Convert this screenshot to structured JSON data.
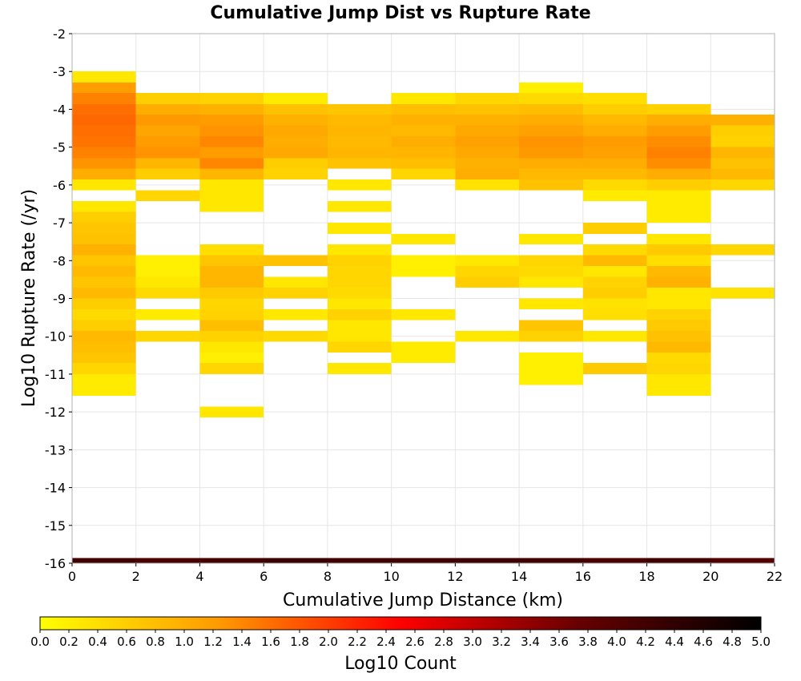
{
  "chart_data": {
    "type": "heatmap",
    "title": "Cumulative Jump Dist vs Rupture Rate",
    "xlabel": "Cumulative Jump Distance (km)",
    "ylabel": "Log10 Rupture Rate (/yr)",
    "xlim": [
      0,
      22
    ],
    "ylim": [
      -16,
      -2
    ],
    "x_bin_width": 2,
    "y_bin_height": 0.2857,
    "xticks": [
      0,
      2,
      4,
      6,
      8,
      10,
      12,
      14,
      16,
      18,
      20,
      22
    ],
    "yticks": [
      -2,
      -3,
      -4,
      -5,
      -6,
      -7,
      -8,
      -9,
      -10,
      -11,
      -12,
      -13,
      -14,
      -15,
      -16
    ],
    "grid": true,
    "colorbar": {
      "label": "Log10 Count",
      "range": [
        0,
        5
      ],
      "ticks": [
        "0.0",
        "0.2",
        "0.4",
        "0.6",
        "0.8",
        "1.0",
        "1.2",
        "1.4",
        "1.6",
        "1.8",
        "2.0",
        "2.2",
        "2.4",
        "2.6",
        "2.8",
        "3.0",
        "3.2",
        "3.4",
        "3.6",
        "3.8",
        "4.0",
        "4.2",
        "4.4",
        "4.6",
        "4.8",
        "5.0"
      ],
      "colors": [
        "#ffff00",
        "#ff9900",
        "#ff0000",
        "#660000",
        "#000000"
      ]
    },
    "columns": [
      {
        "x": [
          0,
          2
        ],
        "cells": [
          [
            -3.29,
            -3.0,
            0.3
          ],
          [
            -3.57,
            -3.29,
            1.2
          ],
          [
            -3.86,
            -3.57,
            1.45
          ],
          [
            -4.14,
            -3.86,
            1.6
          ],
          [
            -4.43,
            -4.14,
            1.65
          ],
          [
            -4.71,
            -4.43,
            1.6
          ],
          [
            -5.0,
            -4.71,
            1.55
          ],
          [
            -5.29,
            -5.0,
            1.45
          ],
          [
            -5.57,
            -5.29,
            1.3
          ],
          [
            -5.86,
            -5.57,
            1.0
          ],
          [
            -6.14,
            -5.86,
            0.3
          ],
          [
            -6.71,
            -6.43,
            0.3
          ],
          [
            -7.0,
            -6.71,
            0.6
          ],
          [
            -7.29,
            -7.0,
            0.7
          ],
          [
            -7.57,
            -7.29,
            0.75
          ],
          [
            -7.86,
            -7.57,
            0.95
          ],
          [
            -8.14,
            -7.86,
            0.7
          ],
          [
            -8.43,
            -8.14,
            0.85
          ],
          [
            -8.71,
            -8.43,
            0.7
          ],
          [
            -9.0,
            -8.71,
            0.85
          ],
          [
            -9.29,
            -9.0,
            0.6
          ],
          [
            -9.57,
            -9.29,
            0.45
          ],
          [
            -9.86,
            -9.57,
            0.6
          ],
          [
            -10.14,
            -9.86,
            0.85
          ],
          [
            -10.43,
            -10.14,
            0.8
          ],
          [
            -10.71,
            -10.43,
            0.7
          ],
          [
            -11.0,
            -10.71,
            0.5
          ],
          [
            -11.57,
            -11.0,
            0.25
          ],
          [
            -16.0,
            -15.86,
            4.2
          ]
        ]
      },
      {
        "x": [
          2,
          4
        ],
        "cells": [
          [
            -3.86,
            -3.57,
            0.6
          ],
          [
            -4.14,
            -3.86,
            1.0
          ],
          [
            -4.43,
            -4.14,
            1.25
          ],
          [
            -4.71,
            -4.43,
            1.1
          ],
          [
            -5.0,
            -4.71,
            1.2
          ],
          [
            -5.29,
            -5.0,
            1.3
          ],
          [
            -5.57,
            -5.29,
            0.9
          ],
          [
            -5.86,
            -5.57,
            0.6
          ],
          [
            -6.43,
            -6.14,
            0.5
          ],
          [
            -8.43,
            -7.86,
            0.2
          ],
          [
            -8.71,
            -8.43,
            0.3
          ],
          [
            -9.0,
            -8.71,
            0.45
          ],
          [
            -9.57,
            -9.29,
            0.25
          ],
          [
            -10.14,
            -9.86,
            0.5
          ],
          [
            -16.0,
            -15.86,
            4.1
          ]
        ]
      },
      {
        "x": [
          4,
          6
        ],
        "cells": [
          [
            -3.86,
            -3.57,
            0.55
          ],
          [
            -4.14,
            -3.86,
            0.95
          ],
          [
            -4.43,
            -4.14,
            1.2
          ],
          [
            -4.71,
            -4.43,
            1.3
          ],
          [
            -5.0,
            -4.71,
            1.4
          ],
          [
            -5.29,
            -5.0,
            1.2
          ],
          [
            -5.57,
            -5.29,
            1.4
          ],
          [
            -5.86,
            -5.57,
            0.9
          ],
          [
            -6.14,
            -5.86,
            0.3
          ],
          [
            -6.71,
            -6.14,
            0.3
          ],
          [
            -7.86,
            -7.57,
            0.4
          ],
          [
            -8.14,
            -7.86,
            0.7
          ],
          [
            -8.43,
            -8.14,
            0.9
          ],
          [
            -8.71,
            -8.43,
            0.9
          ],
          [
            -9.0,
            -8.71,
            0.65
          ],
          [
            -9.29,
            -9.0,
            0.5
          ],
          [
            -9.57,
            -9.29,
            0.55
          ],
          [
            -9.86,
            -9.57,
            0.8
          ],
          [
            -10.14,
            -9.86,
            0.55
          ],
          [
            -10.43,
            -10.14,
            0.3
          ],
          [
            -10.71,
            -10.43,
            0.2
          ],
          [
            -11.0,
            -10.71,
            0.5
          ],
          [
            -12.14,
            -11.86,
            0.3
          ],
          [
            -16.0,
            -15.86,
            4.15
          ]
        ]
      },
      {
        "x": [
          6,
          8
        ],
        "cells": [
          [
            -3.86,
            -3.57,
            0.25
          ],
          [
            -4.14,
            -3.86,
            0.75
          ],
          [
            -4.43,
            -4.14,
            0.95
          ],
          [
            -4.71,
            -4.43,
            1.05
          ],
          [
            -5.0,
            -4.71,
            1.0
          ],
          [
            -5.29,
            -5.0,
            1.05
          ],
          [
            -5.57,
            -5.29,
            0.6
          ],
          [
            -5.86,
            -5.57,
            0.55
          ],
          [
            -8.14,
            -7.86,
            0.75
          ],
          [
            -8.71,
            -8.43,
            0.3
          ],
          [
            -9.0,
            -8.71,
            0.55
          ],
          [
            -9.57,
            -9.29,
            0.3
          ],
          [
            -10.14,
            -9.86,
            0.45
          ],
          [
            -16.0,
            -15.86,
            4.3
          ]
        ]
      },
      {
        "x": [
          8,
          10
        ],
        "cells": [
          [
            -4.14,
            -3.86,
            0.7
          ],
          [
            -4.43,
            -4.14,
            0.85
          ],
          [
            -4.71,
            -4.43,
            0.9
          ],
          [
            -5.0,
            -4.71,
            0.85
          ],
          [
            -5.29,
            -5.0,
            0.9
          ],
          [
            -5.57,
            -5.29,
            0.75
          ],
          [
            -6.14,
            -5.86,
            0.3
          ],
          [
            -6.71,
            -6.43,
            0.3
          ],
          [
            -7.29,
            -7.0,
            0.3
          ],
          [
            -7.86,
            -7.57,
            0.3
          ],
          [
            -8.14,
            -7.86,
            0.55
          ],
          [
            -8.43,
            -8.14,
            0.5
          ],
          [
            -8.71,
            -8.43,
            0.5
          ],
          [
            -9.0,
            -8.71,
            0.45
          ],
          [
            -9.29,
            -9.0,
            0.3
          ],
          [
            -9.57,
            -9.29,
            0.55
          ],
          [
            -9.86,
            -9.57,
            0.3
          ],
          [
            -10.14,
            -9.86,
            0.3
          ],
          [
            -10.43,
            -10.14,
            0.5
          ],
          [
            -11.0,
            -10.71,
            0.3
          ],
          [
            -16.0,
            -15.86,
            4.2
          ]
        ]
      },
      {
        "x": [
          10,
          12
        ],
        "cells": [
          [
            -3.86,
            -3.57,
            0.3
          ],
          [
            -4.14,
            -3.86,
            0.8
          ],
          [
            -4.43,
            -4.14,
            0.95
          ],
          [
            -4.71,
            -4.43,
            0.85
          ],
          [
            -5.0,
            -4.71,
            1.0
          ],
          [
            -5.29,
            -5.0,
            0.9
          ],
          [
            -5.57,
            -5.29,
            0.8
          ],
          [
            -5.86,
            -5.57,
            0.5
          ],
          [
            -7.57,
            -7.29,
            0.3
          ],
          [
            -8.43,
            -7.86,
            0.2
          ],
          [
            -9.57,
            -9.29,
            0.3
          ],
          [
            -10.71,
            -10.14,
            0.25
          ],
          [
            -16.0,
            -15.86,
            4.2
          ]
        ]
      },
      {
        "x": [
          12,
          14
        ],
        "cells": [
          [
            -3.86,
            -3.57,
            0.5
          ],
          [
            -4.14,
            -3.86,
            0.75
          ],
          [
            -4.43,
            -4.14,
            0.95
          ],
          [
            -4.71,
            -4.43,
            1.05
          ],
          [
            -5.0,
            -4.71,
            1.15
          ],
          [
            -5.29,
            -5.0,
            1.05
          ],
          [
            -5.57,
            -5.29,
            0.95
          ],
          [
            -5.86,
            -5.57,
            1.0
          ],
          [
            -6.14,
            -5.86,
            0.35
          ],
          [
            -8.14,
            -7.86,
            0.3
          ],
          [
            -8.43,
            -8.14,
            0.5
          ],
          [
            -8.71,
            -8.43,
            0.6
          ],
          [
            -10.14,
            -9.86,
            0.3
          ],
          [
            -16.0,
            -15.86,
            4.25
          ]
        ]
      },
      {
        "x": [
          14,
          16
        ],
        "cells": [
          [
            -3.57,
            -3.29,
            0.2
          ],
          [
            -3.86,
            -3.57,
            0.45
          ],
          [
            -4.14,
            -3.86,
            0.8
          ],
          [
            -4.43,
            -4.14,
            1.0
          ],
          [
            -4.71,
            -4.43,
            1.15
          ],
          [
            -5.0,
            -4.71,
            1.3
          ],
          [
            -5.29,
            -5.0,
            1.25
          ],
          [
            -5.57,
            -5.29,
            1.0
          ],
          [
            -5.86,
            -5.57,
            0.85
          ],
          [
            -6.14,
            -5.86,
            0.75
          ],
          [
            -7.57,
            -7.29,
            0.3
          ],
          [
            -8.14,
            -7.86,
            0.5
          ],
          [
            -8.43,
            -8.14,
            0.45
          ],
          [
            -8.71,
            -8.43,
            0.3
          ],
          [
            -9.29,
            -9.0,
            0.3
          ],
          [
            -9.86,
            -9.57,
            0.7
          ],
          [
            -10.14,
            -9.86,
            0.55
          ],
          [
            -11.29,
            -10.43,
            0.2
          ],
          [
            -16.0,
            -15.86,
            4.2
          ]
        ]
      },
      {
        "x": [
          16,
          18
        ],
        "cells": [
          [
            -3.86,
            -3.57,
            0.4
          ],
          [
            -4.14,
            -3.86,
            0.6
          ],
          [
            -4.43,
            -4.14,
            0.85
          ],
          [
            -4.71,
            -4.43,
            1.0
          ],
          [
            -5.0,
            -4.71,
            1.2
          ],
          [
            -5.29,
            -5.0,
            1.15
          ],
          [
            -5.57,
            -5.29,
            1.0
          ],
          [
            -5.86,
            -5.57,
            0.85
          ],
          [
            -6.14,
            -5.86,
            0.45
          ],
          [
            -6.43,
            -6.14,
            0.25
          ],
          [
            -7.29,
            -7.0,
            0.6
          ],
          [
            -7.86,
            -7.57,
            0.45
          ],
          [
            -8.14,
            -7.86,
            0.85
          ],
          [
            -8.43,
            -8.14,
            0.3
          ],
          [
            -8.71,
            -8.43,
            0.55
          ],
          [
            -9.0,
            -8.71,
            0.6
          ],
          [
            -9.29,
            -9.0,
            0.35
          ],
          [
            -9.57,
            -9.29,
            0.4
          ],
          [
            -10.14,
            -9.86,
            0.3
          ],
          [
            -11.0,
            -10.71,
            0.65
          ],
          [
            -16.0,
            -15.86,
            4.1
          ]
        ]
      },
      {
        "x": [
          18,
          20
        ],
        "cells": [
          [
            -4.14,
            -3.86,
            0.55
          ],
          [
            -4.43,
            -4.14,
            1.0
          ],
          [
            -4.71,
            -4.43,
            1.2
          ],
          [
            -5.0,
            -4.71,
            1.35
          ],
          [
            -5.29,
            -5.0,
            1.45
          ],
          [
            -5.57,
            -5.29,
            1.35
          ],
          [
            -5.86,
            -5.57,
            1.0
          ],
          [
            -6.14,
            -5.86,
            0.6
          ],
          [
            -7.0,
            -6.14,
            0.25
          ],
          [
            -7.57,
            -7.29,
            0.3
          ],
          [
            -7.86,
            -7.57,
            0.65
          ],
          [
            -8.14,
            -7.86,
            0.4
          ],
          [
            -8.43,
            -8.14,
            0.85
          ],
          [
            -8.71,
            -8.43,
            0.95
          ],
          [
            -9.0,
            -8.71,
            0.3
          ],
          [
            -9.29,
            -9.0,
            0.3
          ],
          [
            -9.57,
            -9.29,
            0.55
          ],
          [
            -9.86,
            -9.57,
            0.65
          ],
          [
            -10.14,
            -9.86,
            0.75
          ],
          [
            -10.43,
            -10.14,
            0.85
          ],
          [
            -10.71,
            -10.43,
            0.45
          ],
          [
            -11.0,
            -10.71,
            0.5
          ],
          [
            -11.57,
            -11.0,
            0.3
          ],
          [
            -16.0,
            -15.86,
            4.2
          ]
        ]
      },
      {
        "x": [
          20,
          22
        ],
        "cells": [
          [
            -4.43,
            -4.14,
            0.95
          ],
          [
            -4.71,
            -4.43,
            0.6
          ],
          [
            -5.0,
            -4.71,
            0.55
          ],
          [
            -5.29,
            -5.0,
            0.9
          ],
          [
            -5.57,
            -5.29,
            0.75
          ],
          [
            -5.86,
            -5.57,
            0.85
          ],
          [
            -6.14,
            -5.86,
            0.5
          ],
          [
            -7.86,
            -7.57,
            0.5
          ],
          [
            -9.0,
            -8.71,
            0.35
          ],
          [
            -16.0,
            -15.86,
            4.0
          ]
        ]
      }
    ]
  }
}
